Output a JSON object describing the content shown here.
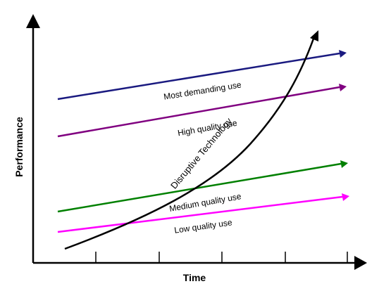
{
  "diagram": {
    "x_axis_label": "Time",
    "y_axis_label": "Performance",
    "curve": {
      "label": "Disruptive Technology",
      "color": "#000000"
    },
    "trajectories": [
      {
        "id": "most-demanding",
        "label": "Most demanding use",
        "color": "#1a1a80"
      },
      {
        "id": "high-quality",
        "label": "High quality use",
        "color": "#800080"
      },
      {
        "id": "medium-quality",
        "label": "Medium quality use",
        "color": "#008000"
      },
      {
        "id": "low-quality",
        "label": "Low quality use",
        "color": "#ff00ff"
      }
    ]
  }
}
